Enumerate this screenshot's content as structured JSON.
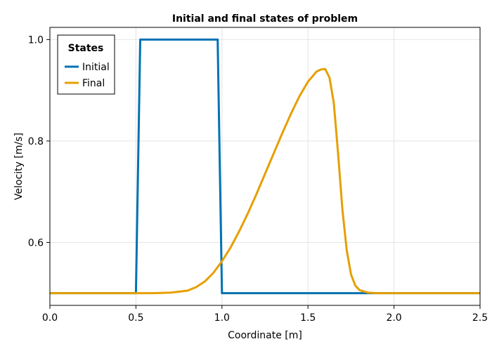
{
  "chart_data": {
    "type": "line",
    "title": "Initial and final states of problem",
    "xlabel": "Coordinate [m]",
    "ylabel": "Velocity [m/s]",
    "xlim": [
      0,
      2.5
    ],
    "ylim": [
      0.476,
      1.024
    ],
    "x_ticks": [
      0.0,
      0.5,
      1.0,
      1.5,
      2.0,
      2.5
    ],
    "x_tick_labels": [
      "0.0",
      "0.5",
      "1.0",
      "1.5",
      "2.0",
      "2.5"
    ],
    "y_ticks": [
      0.6,
      0.8,
      1.0
    ],
    "y_tick_labels": [
      "0.6",
      "0.8",
      "1.0"
    ],
    "grid": true,
    "legend": {
      "title": "States",
      "position": "top-left"
    },
    "series": [
      {
        "name": "Initial",
        "color": "#0072b2",
        "x": [
          0.0,
          0.5,
          0.525,
          0.975,
          1.0,
          2.5
        ],
        "y": [
          0.5,
          0.5,
          1.0,
          1.0,
          0.5,
          0.5
        ]
      },
      {
        "name": "Final",
        "color": "#e69f00",
        "x": [
          0.0,
          0.6,
          0.7,
          0.8,
          0.85,
          0.9,
          0.95,
          1.0,
          1.05,
          1.1,
          1.15,
          1.2,
          1.25,
          1.3,
          1.35,
          1.4,
          1.45,
          1.5,
          1.55,
          1.575,
          1.6,
          1.625,
          1.65,
          1.675,
          1.7,
          1.725,
          1.75,
          1.775,
          1.8,
          1.85,
          1.9,
          2.0,
          2.5
        ],
        "y": [
          0.5,
          0.5,
          0.501,
          0.505,
          0.512,
          0.523,
          0.54,
          0.563,
          0.59,
          0.622,
          0.657,
          0.695,
          0.735,
          0.775,
          0.815,
          0.853,
          0.888,
          0.917,
          0.937,
          0.941,
          0.942,
          0.925,
          0.875,
          0.775,
          0.665,
          0.585,
          0.537,
          0.515,
          0.506,
          0.501,
          0.5,
          0.5,
          0.5
        ]
      }
    ]
  }
}
